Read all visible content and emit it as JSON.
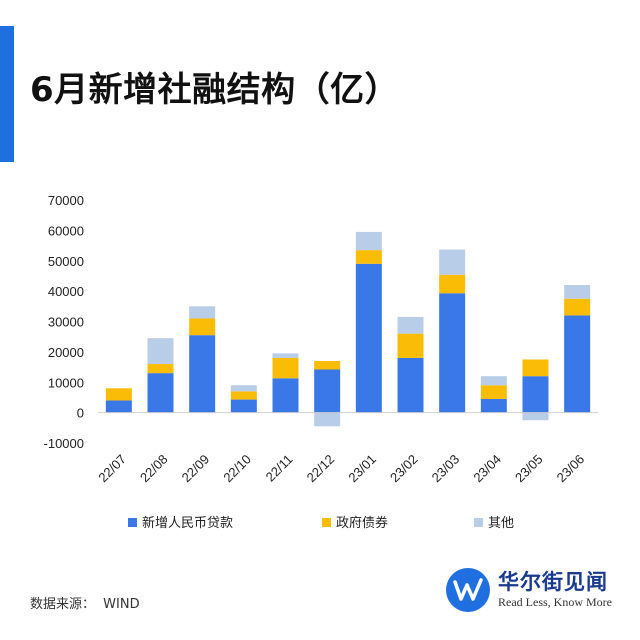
{
  "title": "6月新增社融结构（亿）",
  "source": {
    "label": "数据来源：",
    "value": "WIND"
  },
  "brand": {
    "name": "华尔街见闻",
    "slogan": "Read Less, Know More"
  },
  "colors": {
    "accent": "#1f6fe0",
    "loans": "#3b78e7",
    "gov_bonds": "#fbbc05",
    "other": "#b8cde8"
  },
  "chart_data": {
    "type": "bar",
    "stacked": true,
    "title": "6月新增社融结构（亿）",
    "categories": [
      "22/07",
      "22/08",
      "22/09",
      "22/10",
      "22/11",
      "22/12",
      "23/01",
      "23/02",
      "23/03",
      "23/04",
      "23/05",
      "23/06"
    ],
    "series": [
      {
        "name": "新增人民币贷款",
        "color": "#3b78e7",
        "values": [
          4000,
          13000,
          25500,
          4300,
          11300,
          14200,
          49000,
          18000,
          39300,
          4500,
          12000,
          32000
        ]
      },
      {
        "name": "政府债券",
        "color": "#fbbc05",
        "values": [
          4000,
          3000,
          5500,
          2700,
          6700,
          2800,
          4500,
          8000,
          6100,
          4500,
          5500,
          5500
        ]
      },
      {
        "name": "其他",
        "color": "#b8cde8",
        "values": [
          0,
          8500,
          4000,
          2000,
          1500,
          -4500,
          6000,
          5500,
          8300,
          3000,
          -2500,
          4500
        ]
      }
    ],
    "yticks": [
      "-10000",
      "0",
      "10000",
      "20000",
      "30000",
      "40000",
      "50000",
      "60000",
      "70000"
    ],
    "ylim": [
      -10000,
      70000
    ],
    "grid": false,
    "legend": "bottom"
  }
}
